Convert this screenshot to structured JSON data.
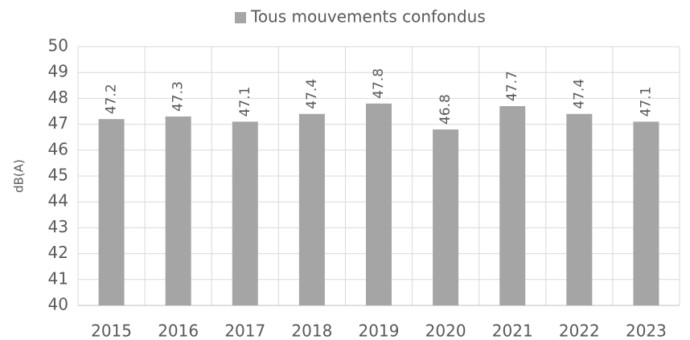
{
  "chart_data": {
    "type": "bar",
    "categories": [
      "2015",
      "2016",
      "2017",
      "2018",
      "2019",
      "2020",
      "2021",
      "2022",
      "2023"
    ],
    "series": [
      {
        "name": "Tous mouvements confondus",
        "color": "#a5a5a5",
        "values": [
          47.2,
          47.3,
          47.1,
          47.4,
          47.8,
          46.8,
          47.7,
          47.4,
          47.1
        ]
      }
    ],
    "y_label": "dB(A)",
    "ylim": [
      40,
      50
    ],
    "yticks": [
      40,
      41,
      42,
      43,
      44,
      45,
      46,
      47,
      48,
      49,
      50
    ],
    "grid": true,
    "legend": "top"
  }
}
